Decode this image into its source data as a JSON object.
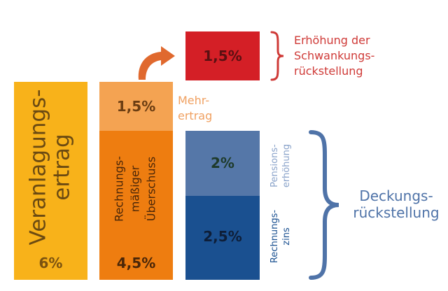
{
  "colors": {
    "yellow": "#F8B21A",
    "orange": "#EE7D10",
    "light_orange": "#F4A352",
    "red": "#D41F26",
    "light_blue": "#5577A8",
    "dark_blue": "#1A5090",
    "red_text": "#CF3A37",
    "mehr_text": "#F0A060",
    "blue_text": "#5B7FB5",
    "dark_text": "#1E1E3A"
  },
  "columns": {
    "veranlagungsertrag": {
      "label": "Veranlagungs-\nertrag",
      "value": "6%"
    },
    "ueberschuss": {
      "label": "Rechnungs-\nmäßiger\nÜberschuss",
      "value": "4,5%"
    },
    "mehrertrag": {
      "value": "1,5%",
      "label": "Mehr-\nertrag"
    },
    "schwankung": {
      "value": "1,5%",
      "label": "Erhöhung der\nSchwankungs-\nrückstellung"
    },
    "pension": {
      "value": "2%",
      "label": "Pensions-\nerhöhung"
    },
    "rechnungszins": {
      "value": "2,5%",
      "label": "Rechnungs-\nzins"
    },
    "deckung": {
      "label": "Deckungs-\nrückstellung"
    }
  },
  "icons": {
    "arrow": "curved-arrow-icon",
    "brace_small": "right-brace-icon",
    "brace_large": "right-brace-icon"
  }
}
